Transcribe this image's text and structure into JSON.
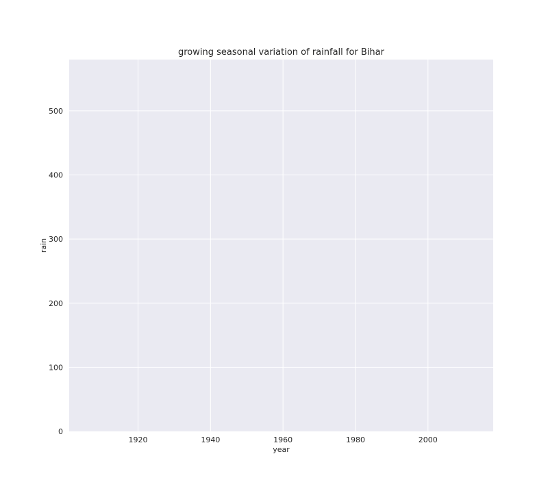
{
  "chart_data": {
    "type": "line",
    "title": "growing seasonal variation of rainfall for Bihar",
    "xlabel": "year",
    "ylabel": "rain",
    "xlim": [
      1901,
      2018
    ],
    "ylim": [
      0,
      580
    ],
    "xticks": [
      1920,
      1940,
      1960,
      1980,
      2000
    ],
    "yticks": [
      0,
      100,
      200,
      300,
      400,
      500
    ],
    "grid": true,
    "legend": "none",
    "series": [],
    "colors": {
      "plot_background": "#eaeaf2",
      "grid": "#ffffff",
      "text": "#262626"
    }
  }
}
